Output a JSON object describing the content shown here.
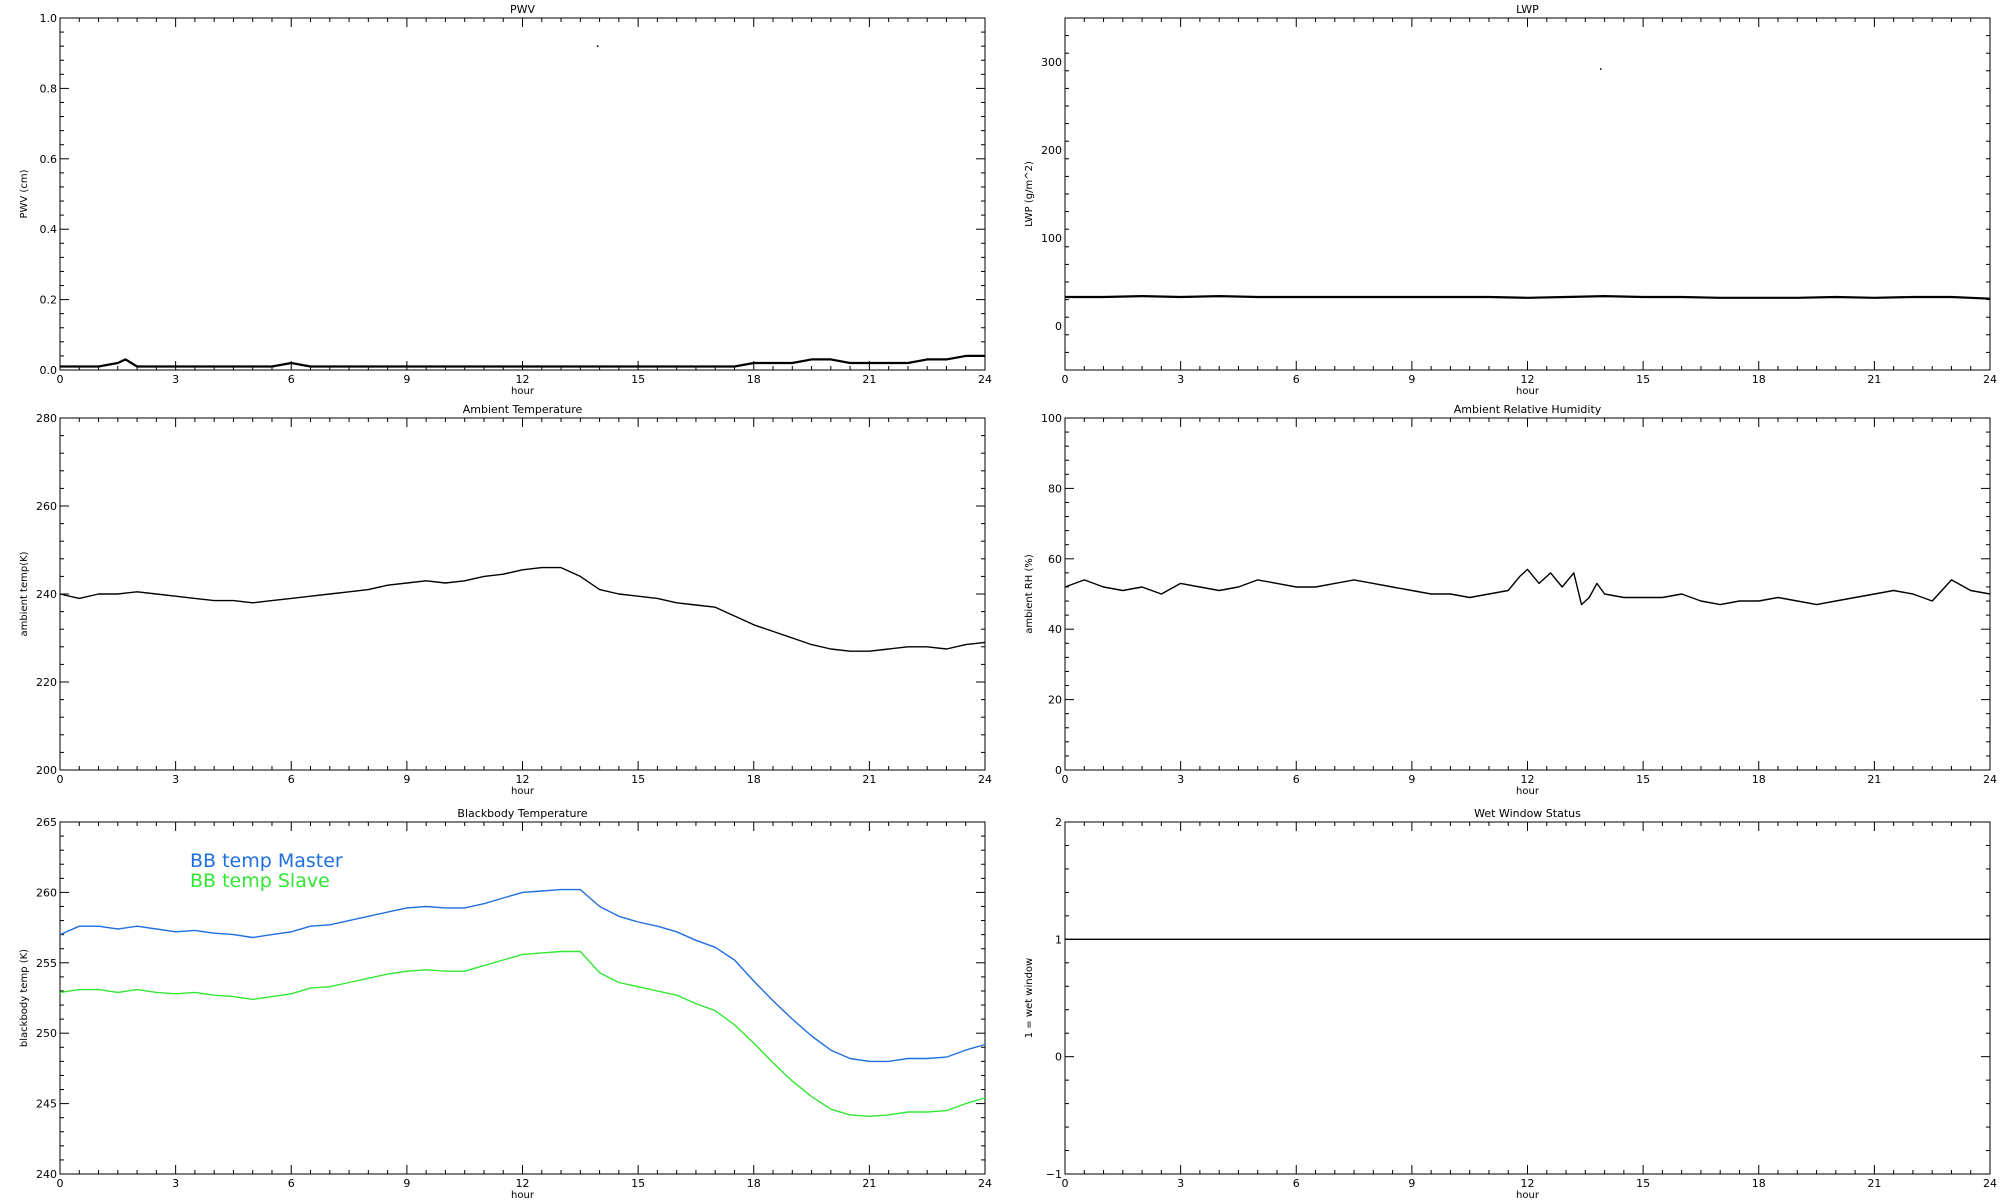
{
  "figure": {
    "background": "#ffffff",
    "axis_color": "#000000"
  },
  "chart_data": [
    {
      "id": "pwv",
      "type": "scatter",
      "title": "PWV",
      "xlabel": "hour",
      "ylabel": "PWV (cm)",
      "xlim": [
        0,
        24
      ],
      "ylim": [
        0,
        1.0
      ],
      "xticks": [
        0,
        3,
        6,
        9,
        12,
        15,
        18,
        21,
        24
      ],
      "xtick_labels": [
        "0",
        "3",
        "6",
        "9",
        "12",
        "15",
        "18",
        "21",
        "24"
      ],
      "yticks": [
        0,
        0.2,
        0.4,
        0.6,
        0.8,
        1.0
      ],
      "ytick_labels": [
        "0.0",
        "0.2",
        "0.4",
        "0.6",
        "0.8",
        "1.0"
      ],
      "grid": false,
      "series": [
        {
          "color": "#000000",
          "x": [
            0,
            0.5,
            1,
            1.5,
            1.7,
            2,
            2.5,
            3,
            3.5,
            4,
            4.5,
            5,
            5.5,
            6,
            6.5,
            7,
            7.5,
            8,
            8.5,
            9,
            9.5,
            10,
            10.5,
            11,
            11.5,
            12,
            12.5,
            13,
            13.5,
            14,
            14.5,
            15,
            15.5,
            16,
            16.5,
            17,
            17.5,
            18,
            18.5,
            19,
            19.5,
            20,
            20.5,
            21,
            21.5,
            22,
            22.5,
            23,
            23.5,
            24
          ],
          "values": [
            0.01,
            0.01,
            0.01,
            0.02,
            0.03,
            0.01,
            0.01,
            0.01,
            0.01,
            0.01,
            0.01,
            0.01,
            0.01,
            0.02,
            0.01,
            0.01,
            0.01,
            0.01,
            0.01,
            0.01,
            0.01,
            0.01,
            0.01,
            0.01,
            0.01,
            0.01,
            0.01,
            0.01,
            0.01,
            0.01,
            0.01,
            0.01,
            0.01,
            0.01,
            0.01,
            0.01,
            0.01,
            0.02,
            0.02,
            0.02,
            0.03,
            0.03,
            0.02,
            0.02,
            0.02,
            0.02,
            0.03,
            0.03,
            0.04,
            0.04
          ]
        },
        {
          "color": "#000000",
          "x": [
            13.95
          ],
          "values": [
            0.92
          ]
        }
      ]
    },
    {
      "id": "lwp",
      "type": "scatter",
      "title": "LWP",
      "xlabel": "hour",
      "ylabel": "LWP (g/m^2)",
      "xlim": [
        0,
        24
      ],
      "ylim": [
        -50,
        350
      ],
      "xticks": [
        0,
        3,
        6,
        9,
        12,
        15,
        18,
        21,
        24
      ],
      "xtick_labels": [
        "0",
        "3",
        "6",
        "9",
        "12",
        "15",
        "18",
        "21",
        "24"
      ],
      "yticks": [
        0,
        100,
        200,
        300
      ],
      "ytick_labels": [
        "0",
        "100",
        "200",
        "300"
      ],
      "grid": false,
      "series": [
        {
          "color": "#000000",
          "x": [
            0,
            1,
            2,
            3,
            4,
            5,
            6,
            7,
            8,
            9,
            10,
            11,
            12,
            13,
            14,
            15,
            16,
            17,
            18,
            19,
            20,
            21,
            22,
            23,
            24
          ],
          "values": [
            33,
            33,
            34,
            33,
            34,
            33,
            33,
            33,
            33,
            33,
            33,
            33,
            32,
            33,
            34,
            33,
            33,
            32,
            32,
            32,
            33,
            32,
            33,
            33,
            31
          ]
        },
        {
          "color": "#000000",
          "x": [
            13.9
          ],
          "values": [
            292
          ]
        }
      ]
    },
    {
      "id": "ambient-temperature",
      "type": "line",
      "title": "Ambient Temperature",
      "xlabel": "hour",
      "ylabel": "ambient temp(K)",
      "xlim": [
        0,
        24
      ],
      "ylim": [
        200,
        280
      ],
      "xticks": [
        0,
        3,
        6,
        9,
        12,
        15,
        18,
        21,
        24
      ],
      "xtick_labels": [
        "0",
        "3",
        "6",
        "9",
        "12",
        "15",
        "18",
        "21",
        "24"
      ],
      "yticks": [
        200,
        220,
        240,
        260,
        280
      ],
      "ytick_labels": [
        "200",
        "220",
        "240",
        "260",
        "280"
      ],
      "grid": false,
      "series": [
        {
          "color": "#000000",
          "x": [
            0,
            0.5,
            1,
            1.5,
            2,
            2.5,
            3,
            3.5,
            4,
            4.5,
            5,
            5.5,
            6,
            6.5,
            7,
            7.5,
            8,
            8.5,
            9,
            9.5,
            10,
            10.5,
            11,
            11.5,
            12,
            12.5,
            13,
            13.5,
            14,
            14.5,
            15,
            15.5,
            16,
            16.5,
            17,
            17.5,
            18,
            18.5,
            19,
            19.5,
            20,
            20.5,
            21,
            21.5,
            22,
            22.5,
            23,
            23.5,
            24
          ],
          "values": [
            240,
            239,
            240,
            240,
            240.5,
            240,
            239.5,
            239,
            238.5,
            238.5,
            238,
            238.5,
            239,
            239.5,
            240,
            240.5,
            241,
            242,
            242.5,
            243,
            242.5,
            243,
            244,
            244.5,
            245.5,
            246,
            246,
            244,
            241,
            240,
            239.5,
            239,
            238,
            237.5,
            237,
            235,
            233,
            231.5,
            230,
            228.5,
            227.5,
            227,
            227,
            227.5,
            228,
            228,
            227.5,
            228.5,
            229
          ]
        }
      ]
    },
    {
      "id": "ambient-relative-humidity",
      "type": "line",
      "title": "Ambient Relative Humidity",
      "xlabel": "hour",
      "ylabel": "ambient RH (%)",
      "xlim": [
        0,
        24
      ],
      "ylim": [
        0,
        100
      ],
      "xticks": [
        0,
        3,
        6,
        9,
        12,
        15,
        18,
        21,
        24
      ],
      "xtick_labels": [
        "0",
        "3",
        "6",
        "9",
        "12",
        "15",
        "18",
        "21",
        "24"
      ],
      "yticks": [
        0,
        20,
        40,
        60,
        80,
        100
      ],
      "ytick_labels": [
        "0",
        "20",
        "40",
        "60",
        "80",
        "100"
      ],
      "grid": false,
      "series": [
        {
          "color": "#000000",
          "x": [
            0,
            0.5,
            1,
            1.5,
            2,
            2.5,
            3,
            3.5,
            4,
            4.5,
            5,
            5.5,
            6,
            6.5,
            7,
            7.5,
            8,
            8.5,
            9,
            9.5,
            10,
            10.5,
            11,
            11.5,
            11.8,
            12,
            12.3,
            12.6,
            12.9,
            13.2,
            13.4,
            13.6,
            13.8,
            14,
            14.5,
            15,
            15.5,
            16,
            16.5,
            17,
            17.5,
            18,
            18.5,
            19,
            19.5,
            20,
            20.5,
            21,
            21.5,
            22,
            22.5,
            23,
            23.5,
            24
          ],
          "values": [
            52,
            54,
            52,
            51,
            52,
            50,
            53,
            52,
            51,
            52,
            54,
            53,
            52,
            52,
            53,
            54,
            53,
            52,
            51,
            50,
            50,
            49,
            50,
            51,
            55,
            57,
            53,
            56,
            52,
            56,
            47,
            49,
            53,
            50,
            49,
            49,
            49,
            50,
            48,
            47,
            48,
            48,
            49,
            48,
            47,
            48,
            49,
            50,
            51,
            50,
            48,
            54,
            51,
            50
          ]
        }
      ]
    },
    {
      "id": "blackbody-temperature",
      "type": "line",
      "title": "Blackbody Temperature",
      "xlabel": "hour",
      "ylabel": "blackbody temp (K)",
      "xlim": [
        0,
        24
      ],
      "ylim": [
        240,
        265
      ],
      "xticks": [
        0,
        3,
        6,
        9,
        12,
        15,
        18,
        21,
        24
      ],
      "xtick_labels": [
        "0",
        "3",
        "6",
        "9",
        "12",
        "15",
        "18",
        "21",
        "24"
      ],
      "yticks": [
        240,
        245,
        250,
        255,
        260,
        265
      ],
      "ytick_labels": [
        "240",
        "245",
        "250",
        "255",
        "260",
        "265"
      ],
      "grid": false,
      "legend": "top-left",
      "series": [
        {
          "name": "BB temp Master",
          "color": "#1f6fe0",
          "x": [
            0,
            0.5,
            1,
            1.5,
            2,
            2.5,
            3,
            3.5,
            4,
            4.5,
            5,
            5.5,
            6,
            6.5,
            7,
            7.5,
            8,
            8.5,
            9,
            9.5,
            10,
            10.5,
            11,
            11.5,
            12,
            12.5,
            13,
            13.5,
            14,
            14.5,
            15,
            15.5,
            16,
            16.5,
            17,
            17.5,
            18,
            18.5,
            19,
            19.5,
            20,
            20.5,
            21,
            21.5,
            22,
            22.5,
            23,
            23.5,
            24
          ],
          "values": [
            257,
            257.6,
            257.6,
            257.4,
            257.6,
            257.4,
            257.2,
            257.3,
            257.1,
            257,
            256.8,
            257,
            257.2,
            257.6,
            257.7,
            258,
            258.3,
            258.6,
            258.9,
            259,
            258.9,
            258.9,
            259.2,
            259.6,
            260,
            260.1,
            260.2,
            260.2,
            259,
            258.3,
            257.9,
            257.6,
            257.2,
            256.6,
            256.1,
            255.2,
            253.7,
            252.3,
            251,
            249.8,
            248.8,
            248.2,
            248,
            248,
            248.2,
            248.2,
            248.3,
            248.8,
            249.2
          ]
        },
        {
          "name": "BB temp Slave",
          "color": "#33e633",
          "x": [
            0,
            0.5,
            1,
            1.5,
            2,
            2.5,
            3,
            3.5,
            4,
            4.5,
            5,
            5.5,
            6,
            6.5,
            7,
            7.5,
            8,
            8.5,
            9,
            9.5,
            10,
            10.5,
            11,
            11.5,
            12,
            12.5,
            13,
            13.5,
            14,
            14.5,
            15,
            15.5,
            16,
            16.5,
            17,
            17.5,
            18,
            18.5,
            19,
            19.5,
            20,
            20.5,
            21,
            21.5,
            22,
            22.5,
            23,
            23.5,
            24
          ],
          "values": [
            252.9,
            253.1,
            253.1,
            252.9,
            253.1,
            252.9,
            252.8,
            252.9,
            252.7,
            252.6,
            252.4,
            252.6,
            252.8,
            253.2,
            253.3,
            253.6,
            253.9,
            254.2,
            254.4,
            254.5,
            254.4,
            254.4,
            254.8,
            255.2,
            255.6,
            255.7,
            255.8,
            255.8,
            254.3,
            253.6,
            253.3,
            253,
            252.7,
            252.1,
            251.6,
            250.6,
            249.3,
            247.9,
            246.6,
            245.5,
            244.6,
            244.2,
            244.1,
            244.2,
            244.4,
            244.4,
            244.5,
            245,
            245.4
          ]
        }
      ]
    },
    {
      "id": "wet-window-status",
      "type": "line",
      "title": "Wet Window Status",
      "xlabel": "hour",
      "ylabel": "1 = wet window",
      "xlim": [
        0,
        24
      ],
      "ylim": [
        -1,
        2
      ],
      "xticks": [
        0,
        3,
        6,
        9,
        12,
        15,
        18,
        21,
        24
      ],
      "xtick_labels": [
        "0",
        "3",
        "6",
        "9",
        "12",
        "15",
        "18",
        "21",
        "24"
      ],
      "yticks": [
        -1,
        0,
        1,
        2
      ],
      "ytick_labels": [
        "−1",
        "0",
        "1",
        "2"
      ],
      "grid": false,
      "series": [
        {
          "color": "#000000",
          "x": [
            0,
            24
          ],
          "values": [
            1,
            1
          ]
        }
      ]
    }
  ]
}
